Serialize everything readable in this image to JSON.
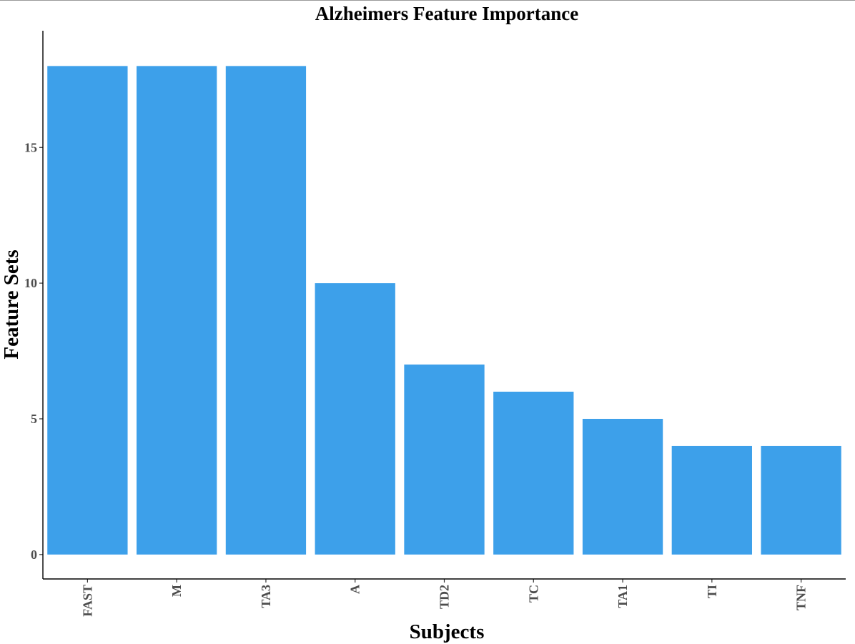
{
  "chart_data": {
    "type": "bar",
    "title": "Alzheimers Feature Importance",
    "xlabel": "Subjects",
    "ylabel": "Feature Sets",
    "categories": [
      "FAST",
      "M",
      "TA3",
      "A",
      "TD2",
      "TC",
      "TA1",
      "TI",
      "TNF"
    ],
    "values": [
      18,
      18,
      18,
      10,
      7,
      6,
      5,
      4,
      4
    ],
    "yticks": [
      0,
      5,
      10,
      15
    ],
    "ylim": [
      -0.9,
      19.3
    ],
    "grid": false,
    "legend": "none",
    "bar_color": "#3da0ea"
  }
}
